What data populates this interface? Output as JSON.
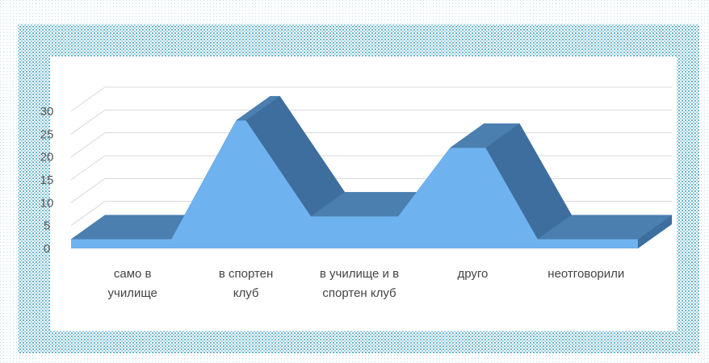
{
  "chart_data": {
    "type": "area",
    "title": "",
    "xlabel": "",
    "ylabel": "",
    "categories": [
      [
        "само в",
        "училище"
      ],
      [
        "в спортен",
        "клуб"
      ],
      [
        "в училище и в",
        "спортен клуб"
      ],
      [
        "друго",
        ""
      ],
      [
        "неотговорили",
        ""
      ]
    ],
    "values": [
      2,
      28,
      7,
      22,
      2
    ],
    "yticks": [
      "0",
      "5",
      "10",
      "15",
      "20",
      "25",
      "30"
    ],
    "ylim": [
      0,
      30
    ],
    "grid": true,
    "legend": "none",
    "colors": {
      "front": "#6fb2f0",
      "side": "#3d6e9e",
      "top": "#4a7fb0",
      "grid": "#d8d8d8",
      "frame_dot": "#6ab4cc"
    }
  }
}
